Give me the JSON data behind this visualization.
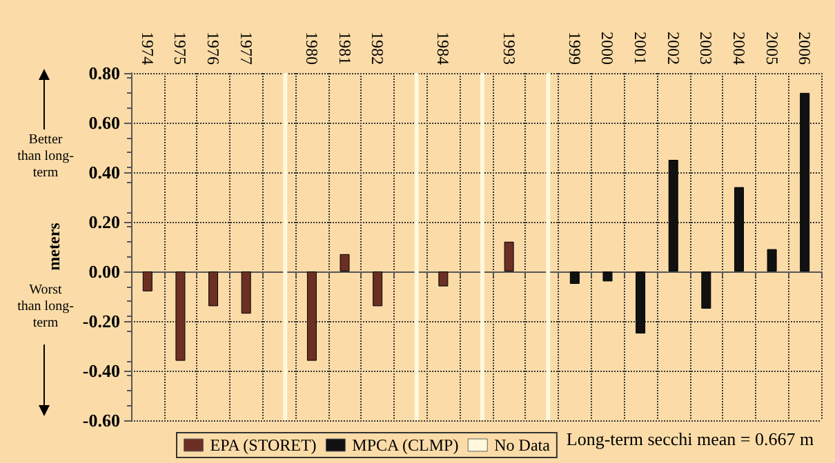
{
  "chart_data": {
    "type": "bar",
    "ylabel": "meters",
    "categories": [
      "1974",
      "1975",
      "1976",
      "1977",
      null,
      "1980",
      "1981",
      "1982",
      null,
      "1984",
      null,
      "1993",
      null,
      "1999",
      "2000",
      "2001",
      "2002",
      "2003",
      "2004",
      "2005",
      "2006"
    ],
    "series": [
      {
        "name": "EPA (STORET)",
        "color": "#6b2f24",
        "values": [
          -0.08,
          -0.36,
          -0.14,
          -0.17,
          null,
          -0.36,
          0.07,
          -0.14,
          null,
          -0.06,
          null,
          0.12,
          null,
          null,
          null,
          null,
          null,
          null,
          null,
          null,
          null
        ]
      },
      {
        "name": "MPCA (CLMP)",
        "color": "#111111",
        "values": [
          null,
          null,
          null,
          null,
          null,
          null,
          null,
          null,
          null,
          null,
          null,
          null,
          null,
          -0.05,
          -0.04,
          -0.25,
          0.45,
          -0.15,
          0.34,
          0.09,
          0.72
        ]
      },
      {
        "name": "No Data",
        "color": "#fff8dc",
        "base": [
          null,
          null,
          null,
          null,
          -0.6,
          null,
          null,
          null,
          -0.6,
          null,
          -0.6,
          null,
          -0.6,
          null,
          null,
          null,
          null,
          null,
          null,
          null,
          null
        ],
        "values": [
          null,
          null,
          null,
          null,
          1.4,
          null,
          null,
          null,
          1.4,
          null,
          1.4,
          null,
          1.4,
          null,
          null,
          null,
          null,
          null,
          null,
          null,
          null
        ]
      }
    ],
    "ylim": [
      -0.6,
      0.8
    ],
    "yticks": [
      {
        "value": -0.6,
        "label": "-0.60"
      },
      {
        "value": -0.4,
        "label": "-0.40"
      },
      {
        "value": -0.2,
        "label": "-0.20"
      },
      {
        "value": 0,
        "label": "0.00"
      },
      {
        "value": 0.2,
        "label": "0.20"
      },
      {
        "value": 0.4,
        "label": "0.40"
      },
      {
        "value": 0.6,
        "label": "0.60"
      },
      {
        "value": 0.8,
        "label": "0.80"
      }
    ],
    "grid": true,
    "legend": "bottom",
    "annotations": [
      "Better than long-term",
      "Worst than long-term",
      "Long-term secchi mean = 0.667 m"
    ]
  }
}
